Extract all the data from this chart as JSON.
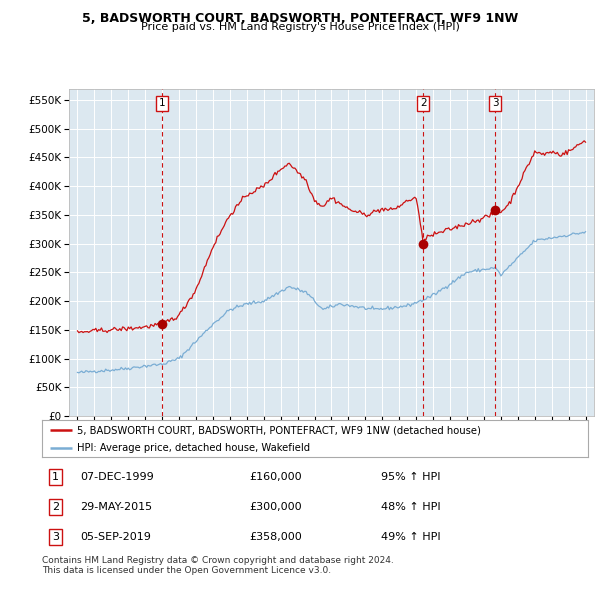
{
  "title": "5, BADSWORTH COURT, BADSWORTH, PONTEFRACT, WF9 1NW",
  "subtitle": "Price paid vs. HM Land Registry's House Price Index (HPI)",
  "background_color": "#ffffff",
  "plot_bg_color": "#dce8f0",
  "hpi_line_color": "#7aadd4",
  "price_line_color": "#cc1111",
  "marker_color": "#aa0000",
  "vline_color": "#cc1111",
  "grid_color": "#ffffff",
  "sales": [
    {
      "date_year": 2000.0,
      "price": 160000,
      "label": "1"
    },
    {
      "date_year": 2015.42,
      "price": 300000,
      "label": "2"
    },
    {
      "date_year": 2019.67,
      "price": 358000,
      "label": "3"
    }
  ],
  "sale_dates_str": [
    "07-DEC-1999",
    "29-MAY-2015",
    "05-SEP-2019"
  ],
  "sale_prices_str": [
    "£160,000",
    "£300,000",
    "£358,000"
  ],
  "sale_hpi_str": [
    "95% ↑ HPI",
    "48% ↑ HPI",
    "49% ↑ HPI"
  ],
  "ylim": [
    0,
    570000
  ],
  "yticks": [
    0,
    50000,
    100000,
    150000,
    200000,
    250000,
    300000,
    350000,
    400000,
    450000,
    500000,
    550000
  ],
  "ytick_labels": [
    "£0",
    "£50K",
    "£100K",
    "£150K",
    "£200K",
    "£250K",
    "£300K",
    "£350K",
    "£400K",
    "£450K",
    "£500K",
    "£550K"
  ],
  "xlim_start": 1994.5,
  "xlim_end": 2025.5,
  "xticks": [
    1995,
    1996,
    1997,
    1998,
    1999,
    2000,
    2001,
    2002,
    2003,
    2004,
    2005,
    2006,
    2007,
    2008,
    2009,
    2010,
    2011,
    2012,
    2013,
    2014,
    2015,
    2016,
    2017,
    2018,
    2019,
    2020,
    2021,
    2022,
    2023,
    2024,
    2025
  ],
  "legend_line1": "5, BADSWORTH COURT, BADSWORTH, PONTEFRACT, WF9 1NW (detached house)",
  "legend_line2": "HPI: Average price, detached house, Wakefield",
  "footnote": "Contains HM Land Registry data © Crown copyright and database right 2024.\nThis data is licensed under the Open Government Licence v3.0."
}
